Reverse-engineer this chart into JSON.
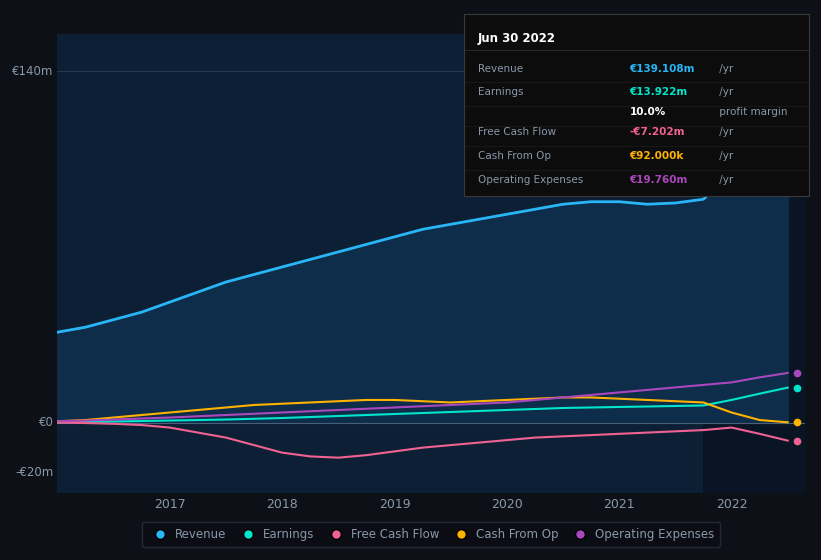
{
  "bg_color": "#0d1117",
  "plot_bg_color": "#0d1f35",
  "highlight_bg_color": "#091525",
  "text_color": "#8899aa",
  "ylim": [
    -28000000,
    155000000
  ],
  "xlabel_years": [
    "2017",
    "2018",
    "2019",
    "2020",
    "2021",
    "2022"
  ],
  "revenue": {
    "color": "#29b6f6",
    "fill_color": "#0d2d4a",
    "label": "Revenue",
    "x": [
      2016.0,
      2016.25,
      2016.5,
      2016.75,
      2017.0,
      2017.25,
      2017.5,
      2017.75,
      2018.0,
      2018.25,
      2018.5,
      2018.75,
      2019.0,
      2019.25,
      2019.5,
      2019.75,
      2020.0,
      2020.25,
      2020.5,
      2020.75,
      2021.0,
      2021.25,
      2021.5,
      2021.75,
      2022.0,
      2022.25,
      2022.5
    ],
    "y": [
      36000000,
      38000000,
      41000000,
      44000000,
      48000000,
      52000000,
      56000000,
      59000000,
      62000000,
      65000000,
      68000000,
      71000000,
      74000000,
      77000000,
      79000000,
      81000000,
      83000000,
      85000000,
      87000000,
      88000000,
      88000000,
      87000000,
      87500000,
      89000000,
      100000000,
      120000000,
      139108000
    ]
  },
  "earnings": {
    "color": "#00e5cc",
    "label": "Earnings",
    "x": [
      2016.0,
      2016.25,
      2016.5,
      2016.75,
      2017.0,
      2017.25,
      2017.5,
      2017.75,
      2018.0,
      2018.25,
      2018.5,
      2018.75,
      2019.0,
      2019.25,
      2019.5,
      2019.75,
      2020.0,
      2020.25,
      2020.5,
      2020.75,
      2021.0,
      2021.25,
      2021.5,
      2021.75,
      2022.0,
      2022.25,
      2022.5
    ],
    "y": [
      0,
      200000,
      400000,
      600000,
      800000,
      1000000,
      1200000,
      1500000,
      1800000,
      2200000,
      2600000,
      3000000,
      3400000,
      3800000,
      4200000,
      4600000,
      5000000,
      5400000,
      5800000,
      6000000,
      6200000,
      6400000,
      6600000,
      6800000,
      9000000,
      11500000,
      13922000
    ]
  },
  "free_cash_flow": {
    "color": "#f06292",
    "label": "Free Cash Flow",
    "x": [
      2016.0,
      2016.25,
      2016.5,
      2016.75,
      2017.0,
      2017.25,
      2017.5,
      2017.75,
      2018.0,
      2018.25,
      2018.5,
      2018.75,
      2019.0,
      2019.25,
      2019.5,
      2019.75,
      2020.0,
      2020.25,
      2020.5,
      2020.75,
      2021.0,
      2021.25,
      2021.5,
      2021.75,
      2022.0,
      2022.25,
      2022.5
    ],
    "y": [
      0,
      -200000,
      -500000,
      -1000000,
      -2000000,
      -4000000,
      -6000000,
      -9000000,
      -12000000,
      -13500000,
      -14000000,
      -13000000,
      -11500000,
      -10000000,
      -9000000,
      -8000000,
      -7000000,
      -6000000,
      -5500000,
      -5000000,
      -4500000,
      -4000000,
      -3500000,
      -3000000,
      -2000000,
      -4500000,
      -7202000
    ]
  },
  "cash_from_op": {
    "color": "#ffb300",
    "label": "Cash From Op",
    "x": [
      2016.0,
      2016.25,
      2016.5,
      2016.75,
      2017.0,
      2017.25,
      2017.5,
      2017.75,
      2018.0,
      2018.25,
      2018.5,
      2018.75,
      2019.0,
      2019.25,
      2019.5,
      2019.75,
      2020.0,
      2020.25,
      2020.5,
      2020.75,
      2021.0,
      2021.25,
      2021.5,
      2021.75,
      2022.0,
      2022.25,
      2022.5
    ],
    "y": [
      500000,
      1000000,
      2000000,
      3000000,
      4000000,
      5000000,
      6000000,
      7000000,
      7500000,
      8000000,
      8500000,
      9000000,
      9000000,
      8500000,
      8000000,
      8500000,
      9000000,
      9500000,
      10000000,
      10000000,
      9500000,
      9000000,
      8500000,
      8000000,
      4000000,
      1000000,
      92000
    ]
  },
  "operating_expenses": {
    "color": "#ab47bc",
    "label": "Operating Expenses",
    "x": [
      2016.0,
      2016.25,
      2016.5,
      2016.75,
      2017.0,
      2017.25,
      2017.5,
      2017.75,
      2018.0,
      2018.25,
      2018.5,
      2018.75,
      2019.0,
      2019.25,
      2019.5,
      2019.75,
      2020.0,
      2020.25,
      2020.5,
      2020.75,
      2021.0,
      2021.25,
      2021.5,
      2021.75,
      2022.0,
      2022.25,
      2022.5
    ],
    "y": [
      500000,
      800000,
      1200000,
      1600000,
      2000000,
      2500000,
      3000000,
      3500000,
      4000000,
      4500000,
      5000000,
      5500000,
      6000000,
      6500000,
      7000000,
      7500000,
      8000000,
      9000000,
      10000000,
      11000000,
      12000000,
      13000000,
      14000000,
      15000000,
      16000000,
      18000000,
      19760000
    ]
  },
  "tooltip": {
    "date": "Jun 30 2022",
    "rows": [
      {
        "label": "Revenue",
        "value": "€139.108m",
        "suffix": " /yr",
        "value_color": "#29b6f6"
      },
      {
        "label": "Earnings",
        "value": "€13.922m",
        "suffix": " /yr",
        "value_color": "#00e5cc"
      },
      {
        "label": "",
        "value": "10.0%",
        "suffix": " profit margin",
        "value_color": "#ffffff"
      },
      {
        "label": "Free Cash Flow",
        "value": "-€7.202m",
        "suffix": " /yr",
        "value_color": "#f06292"
      },
      {
        "label": "Cash From Op",
        "value": "€92.000k",
        "suffix": " /yr",
        "value_color": "#ffb300"
      },
      {
        "label": "Operating Expenses",
        "value": "€19.760m",
        "suffix": " /yr",
        "value_color": "#ab47bc"
      }
    ]
  },
  "legend_items": [
    {
      "label": "Revenue",
      "color": "#29b6f6"
    },
    {
      "label": "Earnings",
      "color": "#00e5cc"
    },
    {
      "label": "Free Cash Flow",
      "color": "#f06292"
    },
    {
      "label": "Cash From Op",
      "color": "#ffb300"
    },
    {
      "label": "Operating Expenses",
      "color": "#ab47bc"
    }
  ]
}
